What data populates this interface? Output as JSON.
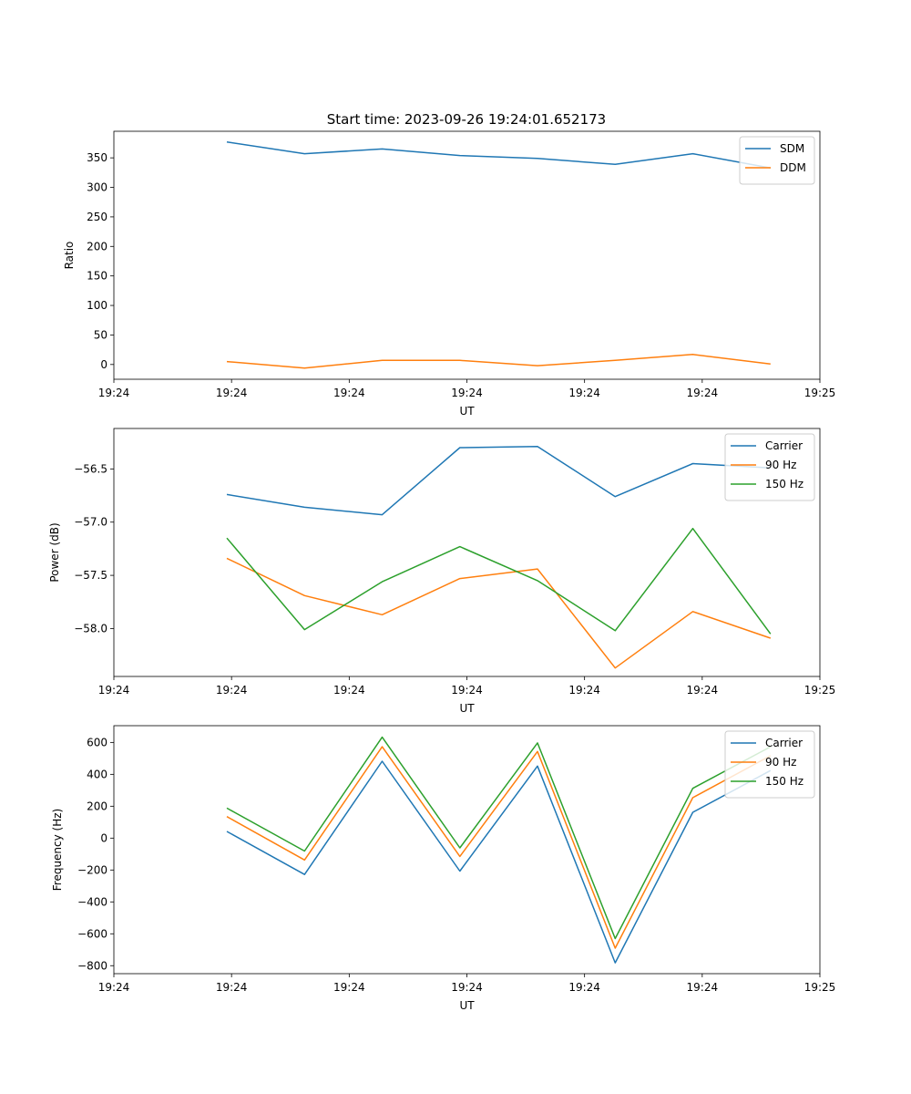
{
  "figure_title": "Start time: 2023-09-26 19:24:01.652173",
  "colors": {
    "blue": "#1f77b4",
    "orange": "#ff7f0e",
    "green": "#2ca02c"
  },
  "chart_data": [
    {
      "type": "line",
      "xlabel": "UT",
      "ylabel": "Ratio",
      "x": [
        0.48,
        0.81,
        1.14,
        1.47,
        1.8,
        2.13,
        2.46,
        2.79
      ],
      "xlim": [
        0,
        3
      ],
      "x_ticks": [
        0,
        0.5,
        1.0,
        1.5,
        2.0,
        2.5,
        3.0
      ],
      "x_tick_labels": [
        "19:24",
        "19:24",
        "19:24",
        "19:24",
        "19:24",
        "19:24",
        "19:25"
      ],
      "ylim": [
        -25,
        395
      ],
      "y_ticks": [
        0,
        50,
        100,
        150,
        200,
        250,
        300,
        350
      ],
      "y_tick_labels": [
        "0",
        "50",
        "100",
        "150",
        "200",
        "250",
        "300",
        "350"
      ],
      "legend": "top-right",
      "series": [
        {
          "name": "SDM",
          "color": "#1f77b4",
          "values": [
            377,
            357,
            365,
            354,
            349,
            339,
            357,
            333
          ]
        },
        {
          "name": "DDM",
          "color": "#ff7f0e",
          "values": [
            5,
            -6,
            7,
            7,
            -2,
            7,
            17,
            1
          ]
        }
      ]
    },
    {
      "type": "line",
      "xlabel": "UT",
      "ylabel": "Power (dB)",
      "x": [
        0.48,
        0.81,
        1.14,
        1.47,
        1.8,
        2.13,
        2.46,
        2.79
      ],
      "xlim": [
        0,
        3
      ],
      "x_ticks": [
        0,
        0.5,
        1.0,
        1.5,
        2.0,
        2.5,
        3.0
      ],
      "x_tick_labels": [
        "19:24",
        "19:24",
        "19:24",
        "19:24",
        "19:24",
        "19:24",
        "19:25"
      ],
      "ylim": [
        -58.45,
        -56.12
      ],
      "y_ticks": [
        -58.0,
        -57.5,
        -57.0,
        -56.5
      ],
      "y_tick_labels": [
        "−58.0",
        "−57.5",
        "−57.0",
        "−56.5"
      ],
      "legend": "top-right",
      "series": [
        {
          "name": "Carrier",
          "color": "#1f77b4",
          "values": [
            -56.74,
            -56.86,
            -56.93,
            -56.3,
            -56.29,
            -56.76,
            -56.45,
            -56.49
          ]
        },
        {
          "name": "90 Hz",
          "color": "#ff7f0e",
          "values": [
            -57.34,
            -57.69,
            -57.87,
            -57.53,
            -57.44,
            -58.37,
            -57.84,
            -58.09
          ]
        },
        {
          "name": "150 Hz",
          "color": "#2ca02c",
          "values": [
            -57.15,
            -58.01,
            -57.56,
            -57.23,
            -57.55,
            -58.02,
            -57.06,
            -58.05
          ]
        }
      ]
    },
    {
      "type": "line",
      "xlabel": "UT",
      "ylabel": "Frequency (Hz)",
      "x": [
        0.48,
        0.81,
        1.14,
        1.47,
        1.8,
        2.13,
        2.46,
        2.79
      ],
      "xlim": [
        0,
        3
      ],
      "x_ticks": [
        0,
        0.5,
        1.0,
        1.5,
        2.0,
        2.5,
        3.0
      ],
      "x_tick_labels": [
        "19:24",
        "19:24",
        "19:24",
        "19:24",
        "19:24",
        "19:24",
        "19:25"
      ],
      "ylim": [
        -850,
        705
      ],
      "y_ticks": [
        -800,
        -600,
        -400,
        -200,
        0,
        200,
        400,
        600
      ],
      "y_tick_labels": [
        "−800",
        "−600",
        "−400",
        "−200",
        "0",
        "200",
        "400",
        "600"
      ],
      "legend": "top-right",
      "series": [
        {
          "name": "Carrier",
          "color": "#1f77b4",
          "values": [
            42,
            -228,
            482,
            -207,
            452,
            -782,
            162,
            424
          ]
        },
        {
          "name": "90 Hz",
          "color": "#ff7f0e",
          "values": [
            135,
            -137,
            573,
            -115,
            543,
            -690,
            254,
            517
          ]
        },
        {
          "name": "150 Hz",
          "color": "#2ca02c",
          "values": [
            188,
            -81,
            633,
            -61,
            597,
            -630,
            312,
            573
          ]
        }
      ]
    }
  ]
}
